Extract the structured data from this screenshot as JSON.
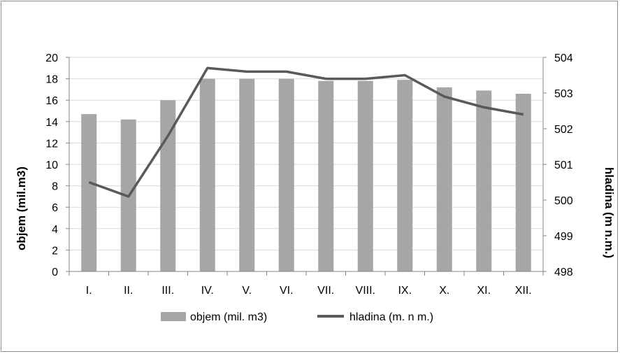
{
  "chart_data": {
    "type": "bar",
    "categories": [
      "I.",
      "II.",
      "III.",
      "IV.",
      "V.",
      "VI.",
      "VII.",
      "VIII.",
      "IX.",
      "X.",
      "XI.",
      "XII."
    ],
    "series": [
      {
        "name": "objem (mil. m3)",
        "type": "bar",
        "axis": "left",
        "color": "#a6a6a6",
        "values": [
          14.7,
          14.2,
          16.0,
          18.0,
          18.0,
          18.0,
          17.8,
          17.8,
          17.9,
          17.2,
          16.9,
          16.6
        ]
      },
      {
        "name": "hladina (m. n m.)",
        "type": "line",
        "axis": "right",
        "color": "#595959",
        "values": [
          500.5,
          500.1,
          501.8,
          503.7,
          503.6,
          503.6,
          503.4,
          503.4,
          503.5,
          502.9,
          502.6,
          502.4
        ]
      }
    ],
    "ylabel": "objem (mil.m3)",
    "y2label": "hladina (m n.m.)",
    "ylim": [
      0,
      20
    ],
    "yticks": [
      "0",
      "2",
      "4",
      "6",
      "8",
      "10",
      "12",
      "14",
      "16",
      "18",
      "20"
    ],
    "y2lim": [
      498,
      504
    ],
    "y2ticks": [
      "498",
      "499",
      "500",
      "501",
      "502",
      "503",
      "504"
    ],
    "grid": true,
    "legend_position": "bottom"
  }
}
